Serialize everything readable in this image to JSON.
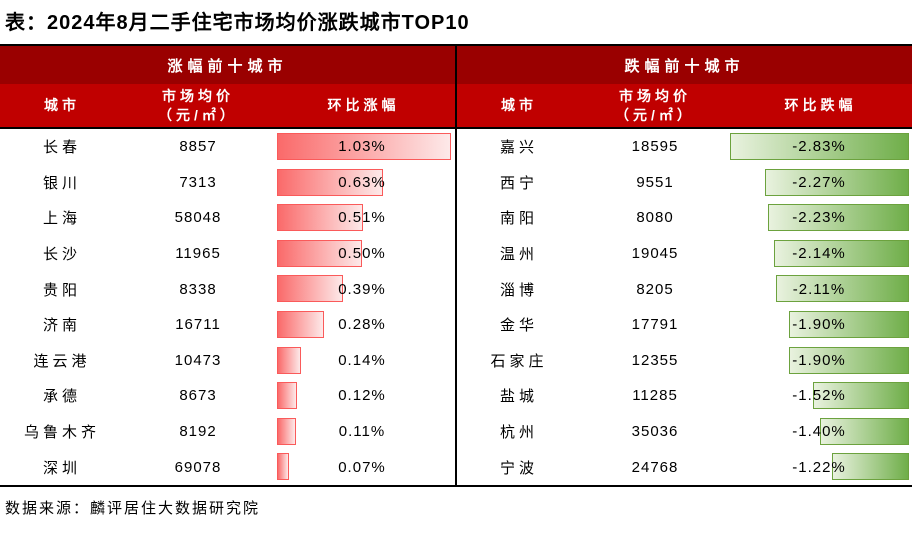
{
  "title": "表：2024年8月二手住宅市场均价涨跌城市TOP10",
  "source": "数据来源：麟评居住大数据研究院",
  "colors": {
    "group_header_bg": "#9a0000",
    "column_header_bg": "#c00000",
    "header_text": "#ffffff",
    "border": "#000000",
    "up_bar_start": "#fa6a6a",
    "up_bar_end": "#fde9e9",
    "up_bar_border": "#fa5a5a",
    "down_bar_start": "#e9f2df",
    "down_bar_end": "#6fae49",
    "down_bar_border": "#6ca23e"
  },
  "up": {
    "group_header": "涨幅前十城市",
    "columns": {
      "city": "城市",
      "price_line1": "市场均价",
      "price_line2": "（元/㎡）",
      "change": "环比涨幅"
    },
    "rows": [
      {
        "city": "长春",
        "price": "8857",
        "change": "1.03%",
        "value": 1.03
      },
      {
        "city": "银川",
        "price": "7313",
        "change": "0.63%",
        "value": 0.63
      },
      {
        "city": "上海",
        "price": "58048",
        "change": "0.51%",
        "value": 0.51
      },
      {
        "city": "长沙",
        "price": "11965",
        "change": "0.50%",
        "value": 0.5
      },
      {
        "city": "贵阳",
        "price": "8338",
        "change": "0.39%",
        "value": 0.39
      },
      {
        "city": "济南",
        "price": "16711",
        "change": "0.28%",
        "value": 0.28
      },
      {
        "city": "连云港",
        "price": "10473",
        "change": "0.14%",
        "value": 0.14
      },
      {
        "city": "承德",
        "price": "8673",
        "change": "0.12%",
        "value": 0.12
      },
      {
        "city": "乌鲁木齐",
        "price": "8192",
        "change": "0.11%",
        "value": 0.11
      },
      {
        "city": "深圳",
        "price": "69078",
        "change": "0.07%",
        "value": 0.07
      }
    ]
  },
  "down": {
    "group_header": "跌幅前十城市",
    "columns": {
      "city": "城市",
      "price_line1": "市场均价",
      "price_line2": "（元/㎡）",
      "change": "环比跌幅"
    },
    "rows": [
      {
        "city": "嘉兴",
        "price": "18595",
        "change": "-2.83%",
        "value": 2.83
      },
      {
        "city": "西宁",
        "price": "9551",
        "change": "-2.27%",
        "value": 2.27
      },
      {
        "city": "南阳",
        "price": "8080",
        "change": "-2.23%",
        "value": 2.23
      },
      {
        "city": "温州",
        "price": "19045",
        "change": "-2.14%",
        "value": 2.14
      },
      {
        "city": "淄博",
        "price": "8205",
        "change": "-2.11%",
        "value": 2.11
      },
      {
        "city": "金华",
        "price": "17791",
        "change": "-1.90%",
        "value": 1.9
      },
      {
        "city": "石家庄",
        "price": "12355",
        "change": "-1.90%",
        "value": 1.9
      },
      {
        "city": "盐城",
        "price": "11285",
        "change": "-1.52%",
        "value": 1.52
      },
      {
        "city": "杭州",
        "price": "35036",
        "change": "-1.40%",
        "value": 1.4
      },
      {
        "city": "宁波",
        "price": "24768",
        "change": "-1.22%",
        "value": 1.22
      }
    ]
  },
  "chart_data": [
    {
      "type": "bar",
      "title": "涨幅前十城市",
      "categories": [
        "长春",
        "银川",
        "上海",
        "长沙",
        "贵阳",
        "济南",
        "连云港",
        "承德",
        "乌鲁木齐",
        "深圳"
      ],
      "values": [
        1.03,
        0.63,
        0.51,
        0.5,
        0.39,
        0.28,
        0.14,
        0.12,
        0.11,
        0.07
      ],
      "prices_yuan_per_sqm": [
        8857,
        7313,
        58048,
        11965,
        8338,
        16711,
        10473,
        8673,
        8192,
        69078
      ],
      "xlabel": "环比涨幅 (%)",
      "ylabel": "城市",
      "xlim": [
        0,
        1.03
      ],
      "orientation": "horizontal",
      "bar_color": "red-gradient",
      "grid": false,
      "legend": false
    },
    {
      "type": "bar",
      "title": "跌幅前十城市",
      "categories": [
        "嘉兴",
        "西宁",
        "南阳",
        "温州",
        "淄博",
        "金华",
        "石家庄",
        "盐城",
        "杭州",
        "宁波"
      ],
      "values": [
        -2.83,
        -2.27,
        -2.23,
        -2.14,
        -2.11,
        -1.9,
        -1.9,
        -1.52,
        -1.4,
        -1.22
      ],
      "prices_yuan_per_sqm": [
        18595,
        9551,
        8080,
        19045,
        8205,
        17791,
        12355,
        11285,
        35036,
        24768
      ],
      "xlabel": "环比跌幅 (%)",
      "ylabel": "城市",
      "xlim": [
        -2.83,
        0
      ],
      "orientation": "horizontal",
      "bar_color": "green-gradient",
      "grid": false,
      "legend": false
    }
  ]
}
